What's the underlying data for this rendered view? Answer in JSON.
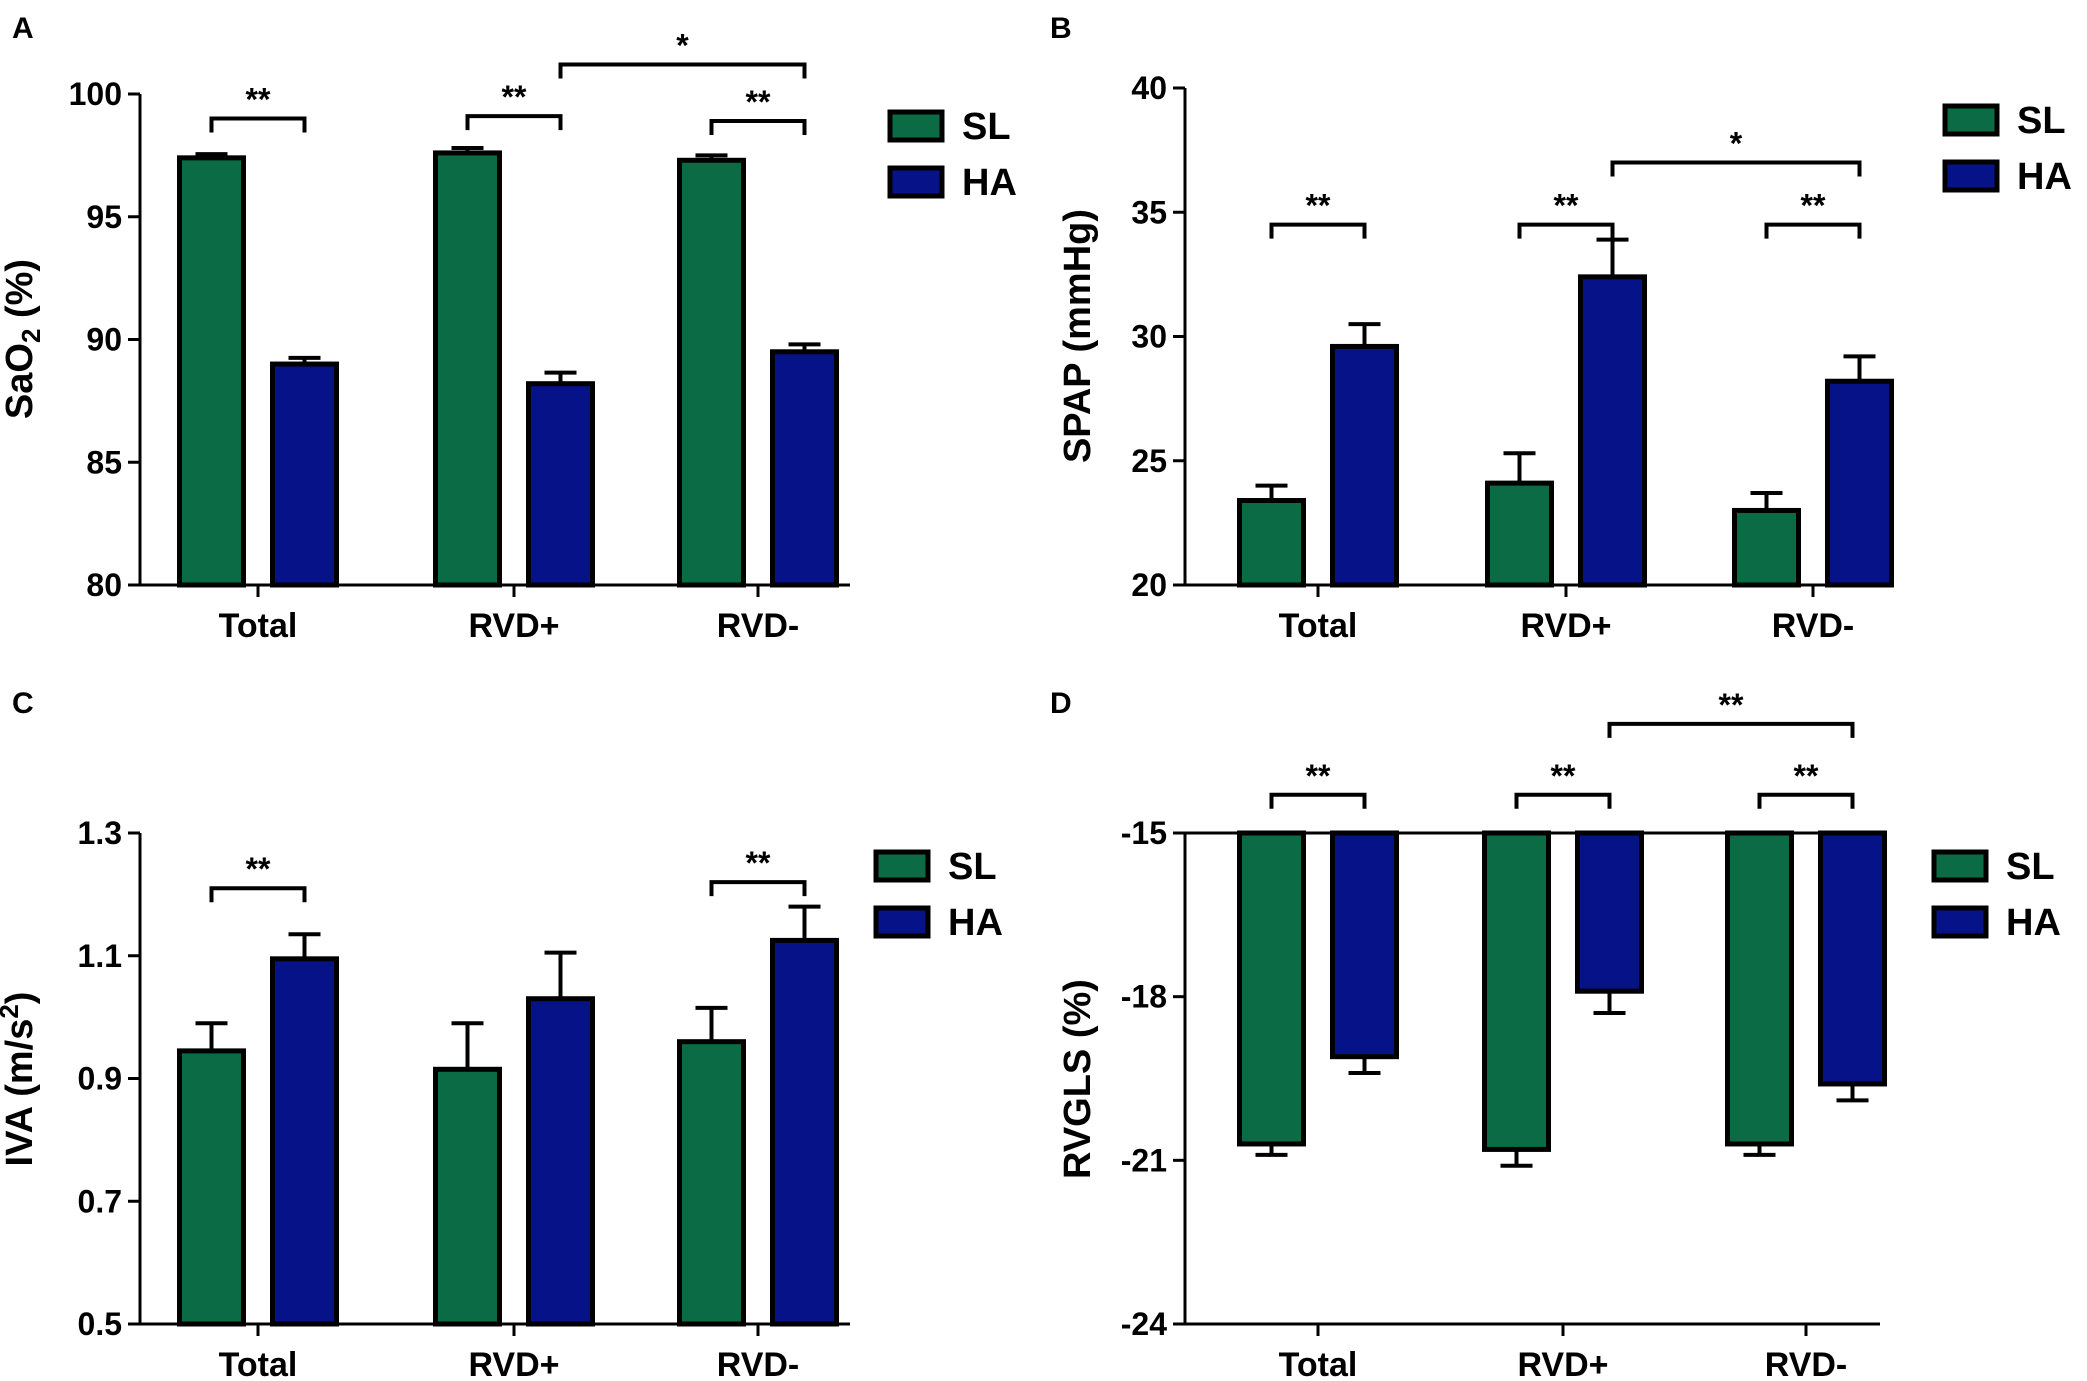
{
  "colors": {
    "SL": "#0a6b45",
    "HA": "#061288",
    "stroke": "#000000"
  },
  "chart_data": [
    {
      "panel": "A",
      "type": "bar",
      "categories": [
        "Total",
        "RVD+",
        "RVD-"
      ],
      "series": [
        {
          "name": "SL",
          "values": [
            97.4,
            97.6,
            97.3
          ],
          "errors": [
            0.15,
            0.2,
            0.2
          ]
        },
        {
          "name": "HA",
          "values": [
            89.0,
            88.2,
            89.5
          ],
          "errors": [
            0.25,
            0.45,
            0.3
          ]
        }
      ],
      "ylabel_parts": [
        "SaO",
        "2",
        " (%)"
      ],
      "ylim": [
        80,
        100
      ],
      "yticks": [
        80,
        85,
        90,
        95,
        100
      ],
      "ytick_labels": [
        "80",
        "85",
        "90",
        "95",
        "100"
      ],
      "baseline": 80,
      "legend": [
        "SL",
        "HA"
      ],
      "legend_position": "top-right",
      "annotations": [
        {
          "label": "**",
          "from": [
            0,
            0
          ],
          "to": [
            0,
            1
          ],
          "y": 99.0
        },
        {
          "label": "**",
          "from": [
            1,
            0
          ],
          "to": [
            1,
            1
          ],
          "y": 99.1
        },
        {
          "label": "**",
          "from": [
            2,
            0
          ],
          "to": [
            2,
            1
          ],
          "y": 98.9
        },
        {
          "label": "*",
          "from": [
            1,
            1
          ],
          "to": [
            2,
            1
          ],
          "y": 101.2
        }
      ]
    },
    {
      "panel": "B",
      "type": "bar",
      "categories": [
        "Total",
        "RVD+",
        "RVD-"
      ],
      "series": [
        {
          "name": "SL",
          "values": [
            23.4,
            24.1,
            23.0
          ],
          "errors": [
            0.6,
            1.2,
            0.7
          ]
        },
        {
          "name": "HA",
          "values": [
            29.6,
            32.4,
            28.2
          ],
          "errors": [
            0.9,
            1.5,
            1.0
          ]
        }
      ],
      "ylabel_parts": [
        "SPAP (mmHg)"
      ],
      "ylim": [
        20,
        40
      ],
      "yticks": [
        20,
        25,
        30,
        35,
        40
      ],
      "ytick_labels": [
        "20",
        "25",
        "30",
        "35",
        "40"
      ],
      "baseline": 20,
      "legend": [
        "SL",
        "HA"
      ],
      "legend_position": "top-right",
      "annotations": [
        {
          "label": "**",
          "from": [
            0,
            0
          ],
          "to": [
            0,
            1
          ],
          "y": 34.5
        },
        {
          "label": "**",
          "from": [
            1,
            0
          ],
          "to": [
            1,
            1
          ],
          "y": 34.5
        },
        {
          "label": "**",
          "from": [
            2,
            0
          ],
          "to": [
            2,
            1
          ],
          "y": 34.5
        },
        {
          "label": "*",
          "from": [
            1,
            1
          ],
          "to": [
            2,
            1
          ],
          "y": 37.0
        }
      ]
    },
    {
      "panel": "C",
      "type": "bar",
      "categories": [
        "Total",
        "RVD+",
        "RVD-"
      ],
      "series": [
        {
          "name": "SL",
          "values": [
            0.945,
            0.915,
            0.96
          ],
          "errors": [
            0.045,
            0.075,
            0.055
          ]
        },
        {
          "name": "HA",
          "values": [
            1.095,
            1.03,
            1.125
          ],
          "errors": [
            0.04,
            0.075,
            0.055
          ]
        }
      ],
      "ylabel_parts": [
        "IVA (m/s",
        "2",
        ")"
      ],
      "ylim": [
        0.5,
        1.3
      ],
      "yticks": [
        0.5,
        0.7,
        0.9,
        1.1,
        1.3
      ],
      "ytick_labels": [
        "0.5",
        "0.7",
        "0.9",
        "1.1",
        "1.3"
      ],
      "baseline": 0.5,
      "legend": [
        "SL",
        "HA"
      ],
      "legend_position": "top-right",
      "annotations": [
        {
          "label": "**",
          "from": [
            0,
            0
          ],
          "to": [
            0,
            1
          ],
          "y": 1.21
        },
        {
          "label": "**",
          "from": [
            2,
            0
          ],
          "to": [
            2,
            1
          ],
          "y": 1.22
        }
      ]
    },
    {
      "panel": "D",
      "type": "bar",
      "categories": [
        "Total",
        "RVD+",
        "RVD-"
      ],
      "series": [
        {
          "name": "SL",
          "values": [
            -20.7,
            -20.8,
            -20.7
          ],
          "errors": [
            0.2,
            0.3,
            0.2
          ]
        },
        {
          "name": "HA",
          "values": [
            -19.1,
            -17.9,
            -19.6
          ],
          "errors": [
            0.3,
            0.4,
            0.3
          ]
        }
      ],
      "ylabel_parts": [
        "RVGLS (%)"
      ],
      "ylim": [
        -24,
        -15
      ],
      "yticks": [
        -24,
        -21,
        -18,
        -15
      ],
      "ytick_labels": [
        "-24",
        "-21",
        "-18",
        "-15"
      ],
      "baseline": -15,
      "legend": [
        "SL",
        "HA"
      ],
      "legend_position": "top-right",
      "annotations": [
        {
          "label": "**",
          "from": [
            0,
            0
          ],
          "to": [
            0,
            1
          ],
          "y": -14.3
        },
        {
          "label": "**",
          "from": [
            1,
            0
          ],
          "to": [
            1,
            1
          ],
          "y": -14.3
        },
        {
          "label": "**",
          "from": [
            2,
            0
          ],
          "to": [
            2,
            1
          ],
          "y": -14.3
        },
        {
          "label": "**",
          "from": [
            1,
            1
          ],
          "to": [
            2,
            1
          ],
          "y": -13.0
        }
      ]
    }
  ]
}
